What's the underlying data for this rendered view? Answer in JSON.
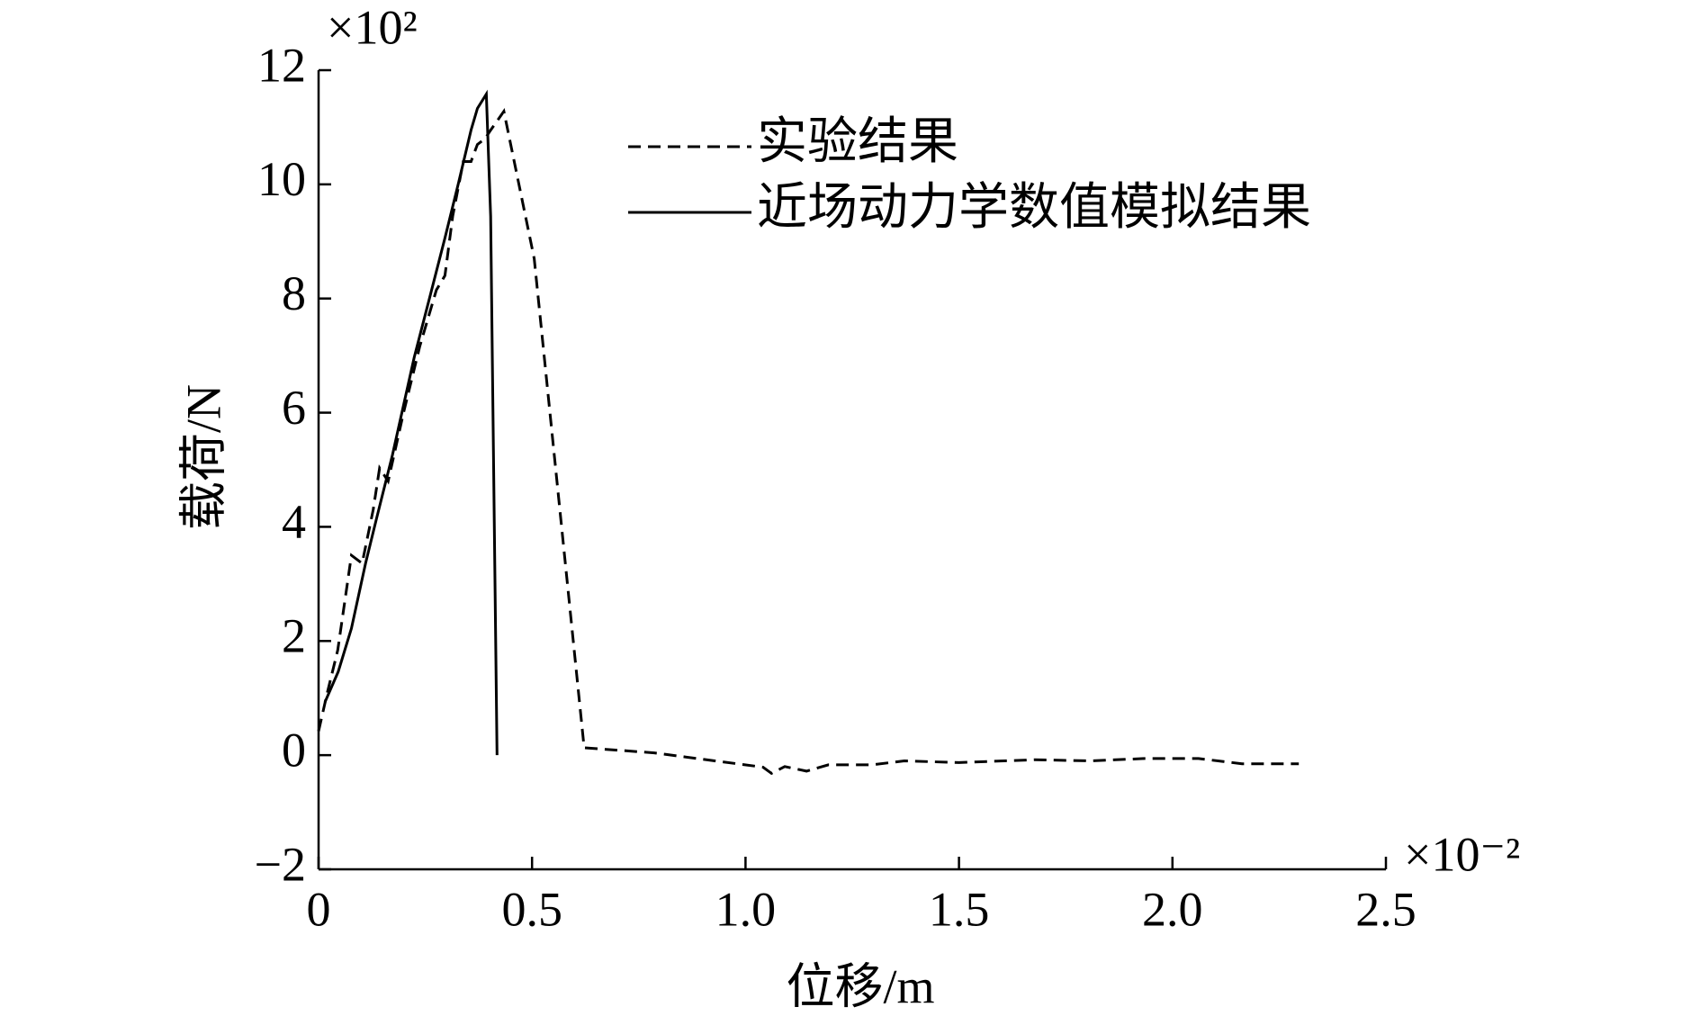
{
  "chart_data": {
    "type": "line",
    "y_label": "载荷/N",
    "x_label": "位移/m",
    "y_scale_label": "×10²",
    "x_scale_label": "×10⁻²",
    "xlim": [
      0,
      2.5
    ],
    "xticks": [
      0,
      0.5,
      {
        "value": 1,
        "label": "1.0"
      },
      1.5,
      {
        "value": 2,
        "label": "2.0"
      },
      2.5
    ],
    "ylim": [
      -2,
      12
    ],
    "yticks": [
      {
        "value": -2,
        "label": "−2"
      },
      0,
      2,
      4,
      6,
      8,
      10,
      12
    ],
    "grid": false,
    "legend": "upper center",
    "series": [
      {
        "name": "实验结果",
        "color": "#000000",
        "linestyle": "dashed",
        "x": [
          0,
          0.02,
          0.045,
          0.077,
          0.102,
          0.128,
          0.143,
          0.163,
          0.199,
          0.237,
          0.276,
          0.296,
          0.314,
          0.339,
          0.357,
          0.372,
          0.39,
          0.403,
          0.434,
          0.505,
          0.622,
          0.786,
          1.041,
          1.061,
          1.092,
          1.143,
          1.194,
          1.296,
          1.372,
          1.5,
          1.679,
          1.806,
          1.934,
          2.061,
          2.163,
          2.296
        ],
        "values": [
          0.42,
          1.08,
          1.84,
          3.5,
          3.36,
          4.3,
          5.03,
          4.8,
          6.0,
          7.16,
          8.15,
          8.4,
          9.44,
          10.4,
          10.4,
          10.7,
          10.8,
          10.95,
          11.28,
          8.7,
          0.13,
          0.04,
          -0.21,
          -0.32,
          -0.2,
          -0.28,
          -0.17,
          -0.17,
          -0.1,
          -0.13,
          -0.08,
          -0.1,
          -0.06,
          -0.06,
          -0.15,
          -0.15
        ]
      },
      {
        "name": "近场动力学数值模拟结果",
        "color": "#000000",
        "linestyle": "solid",
        "x": [
          0.015,
          0.046,
          0.077,
          0.11,
          0.135,
          0.173,
          0.224,
          0.263,
          0.296,
          0.327,
          0.357,
          0.372,
          0.393,
          0.403,
          0.418
        ],
        "values": [
          0.93,
          1.46,
          2.22,
          3.36,
          4.12,
          5.26,
          6.97,
          8.1,
          9.06,
          10.0,
          10.95,
          11.33,
          11.58,
          9.44,
          0
        ]
      }
    ]
  }
}
